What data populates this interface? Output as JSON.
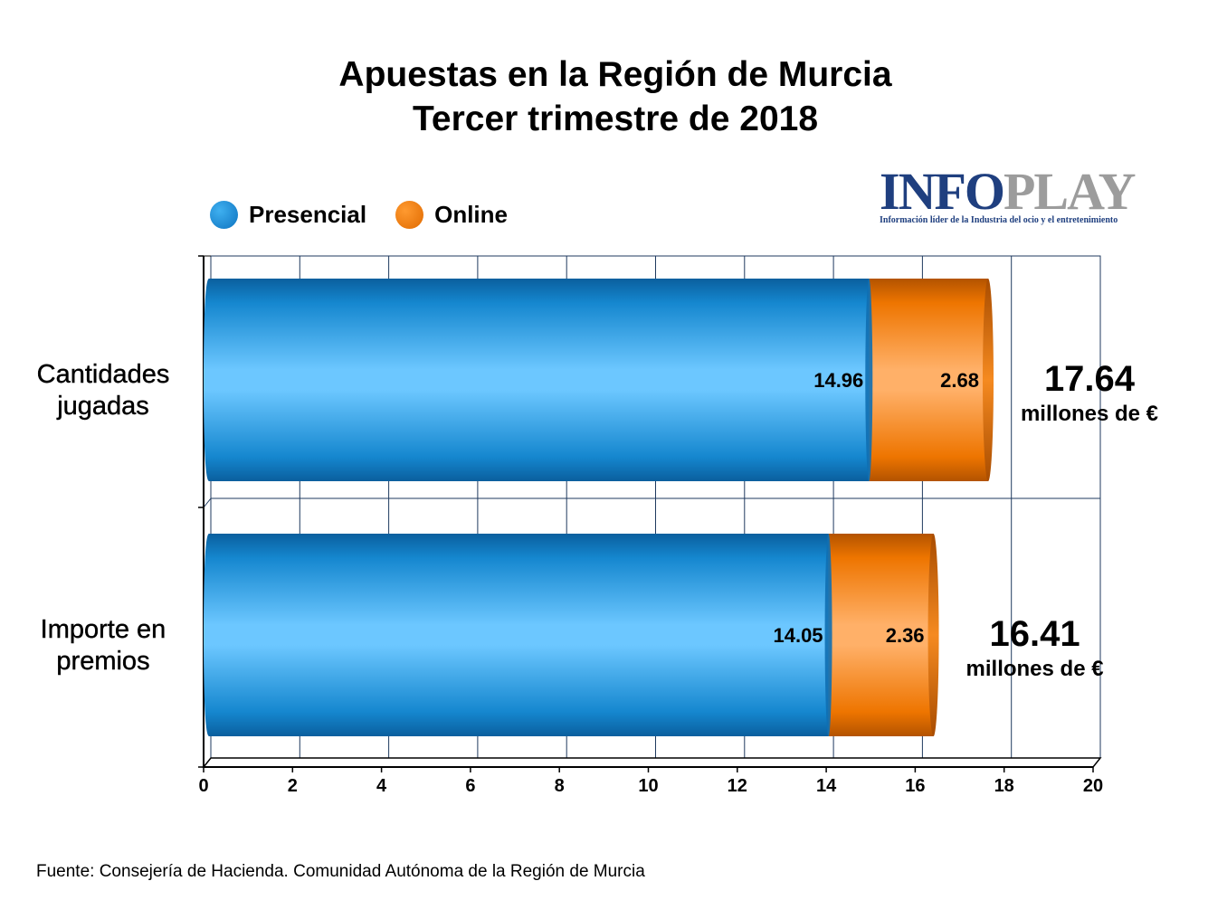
{
  "title": {
    "line1": "Apuestas en la Región de Murcia",
    "line2": "Tercer trimestre de 2018"
  },
  "legend": {
    "presencial": "Presencial",
    "online": "Online"
  },
  "logo": {
    "word_a": "INFO",
    "word_b": "PLAY",
    "tagline": "Información líder de la Industria del ocio y el entretenimiento"
  },
  "colors": {
    "presencial": "#1a8fd8",
    "online": "#f07800",
    "grid": "#1f3a5f"
  },
  "chart_data": {
    "type": "bar",
    "orientation": "horizontal",
    "stacked": true,
    "categories": [
      "Cantidades jugadas",
      "Importe en premios"
    ],
    "category_lines": [
      [
        "Cantidades",
        "jugadas"
      ],
      [
        "Importe en",
        "premios"
      ]
    ],
    "series": [
      {
        "name": "Presencial",
        "values": [
          14.96,
          14.05
        ],
        "labels": [
          "14.96",
          "14.05"
        ]
      },
      {
        "name": "Online",
        "values": [
          2.68,
          2.36
        ],
        "labels": [
          "2.68",
          "2.36"
        ]
      }
    ],
    "totals": [
      {
        "value": "17.64",
        "unit": "millones de €"
      },
      {
        "value": "16.41",
        "unit": "millones de €"
      }
    ],
    "xlim": [
      0,
      20
    ],
    "xticks": [
      "0",
      "2",
      "4",
      "6",
      "8",
      "10",
      "12",
      "14",
      "16",
      "18",
      "20"
    ],
    "grid": true,
    "legend_position": "top-left"
  },
  "source": "Fuente: Consejería de Hacienda. Comunidad Autónoma de la Región de Murcia"
}
